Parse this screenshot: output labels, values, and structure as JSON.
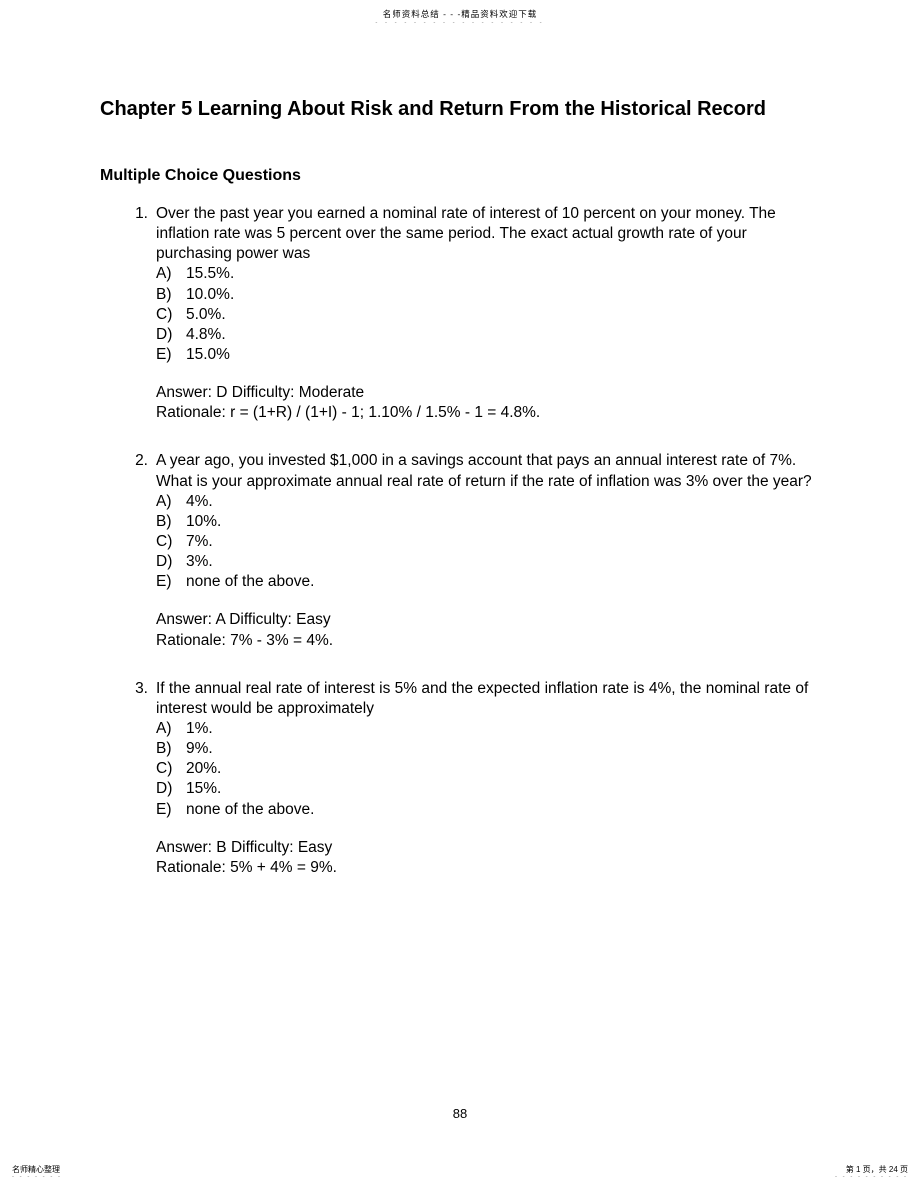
{
  "header": {
    "text": "名师资料总结 - - -精品资料欢迎下载",
    "dots": "- - - - - - - - - - - - - - - - - -"
  },
  "chapter_title": "Chapter 5  Learning About Risk and Return From the Historical Record",
  "section_title": "Multiple Choice Questions",
  "questions": [
    {
      "num": "1.",
      "text": "Over the past year you earned a nominal rate of interest of 10 percent on your money.  The inflation rate was 5 percent over the same period.  The exact actual growth rate of your purchasing power was",
      "choices": [
        {
          "letter": "A)",
          "text": "15.5%."
        },
        {
          "letter": "B)",
          "text": "10.0%."
        },
        {
          "letter": "C)",
          "text": "5.0%."
        },
        {
          "letter": "D)",
          "text": "4.8%."
        },
        {
          "letter": "E)",
          "text": "15.0%"
        }
      ],
      "answer_line": "Answer: D   Difficulty: Moderate",
      "rationale_line": "Rationale: r = (1+R) / (1+I) - 1; 1.10% / 1.5% - 1 = 4.8%."
    },
    {
      "num": "2.",
      "text": "A year ago, you invested $1,000 in a savings account that pays an annual interest rate of 7%.  What is your approximate annual real rate of return if the rate of inflation was 3% over the year?",
      "choices": [
        {
          "letter": "A)",
          "text": "4%."
        },
        {
          "letter": "B)",
          "text": "10%."
        },
        {
          "letter": "C)",
          "text": "7%."
        },
        {
          "letter": "D)",
          "text": "3%."
        },
        {
          "letter": "E)",
          "text": "none of the above."
        }
      ],
      "answer_line": "Answer: A   Difficulty: Easy",
      "rationale_line": "Rationale: 7% - 3% = 4%."
    },
    {
      "num": "3.",
      "text": "If the annual real rate of interest is 5% and the expected inflation rate is 4%, the nominal rate of interest would be approximately",
      "choices": [
        {
          "letter": "A)",
          "text": "1%."
        },
        {
          "letter": "B)",
          "text": "9%."
        },
        {
          "letter": "C)",
          "text": "20%."
        },
        {
          "letter": "D)",
          "text": "15%."
        },
        {
          "letter": "E)",
          "text": "none of the above."
        }
      ],
      "answer_line": "Answer: B   Difficulty: Easy",
      "rationale_line": "Rationale: 5% + 4% = 9%."
    }
  ],
  "page_number": "88",
  "footer": {
    "left": "名师精心整理",
    "left_dots": "- - - - - - -",
    "right": "第 1 页，共 24 页",
    "right_dots": "- - - - - - - - - -"
  }
}
